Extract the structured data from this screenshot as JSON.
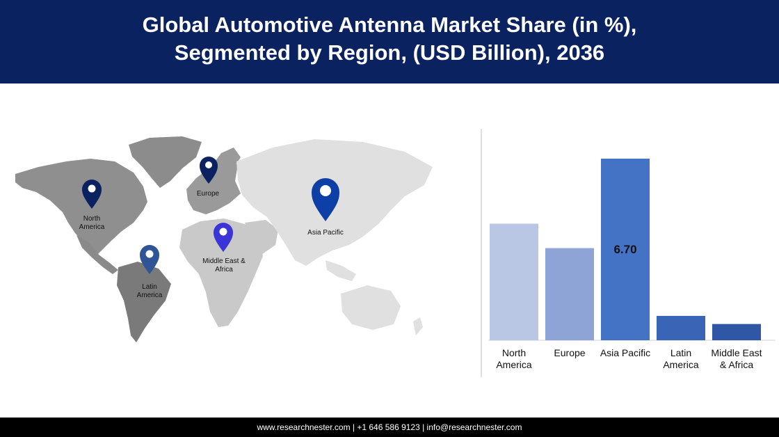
{
  "header": {
    "title_line1": "Global Automotive Antenna Market Share (in %),",
    "title_line2": "Segmented by Region, (USD Billion), 2036"
  },
  "map": {
    "regions": [
      {
        "line1": "North",
        "line2": "America",
        "pin_color": "#0b2261"
      },
      {
        "line1": "Europe",
        "line2": "",
        "pin_color": "#0b2261"
      },
      {
        "line1": "Asia Pacific",
        "line2": "",
        "pin_color": "#0d3fa6"
      },
      {
        "line1": "Middle East &",
        "line2": "Africa",
        "pin_color": "#3b35d8"
      },
      {
        "line1": "Latin",
        "line2": "America",
        "pin_color": "#2f5597"
      }
    ]
  },
  "chart_data": {
    "type": "bar",
    "categories": [
      [
        "North",
        "America"
      ],
      [
        "Europe"
      ],
      [
        "Asia Pacific"
      ],
      [
        "Latin",
        "America"
      ],
      [
        "Middle East",
        "& Africa"
      ]
    ],
    "values": [
      4.3,
      3.4,
      6.7,
      0.9,
      0.6
    ],
    "data_labels": [
      "",
      "",
      "6.70",
      "",
      ""
    ],
    "colors": [
      "#b9c7e5",
      "#8ea4d6",
      "#4472c4",
      "#3a64b5",
      "#2f57a5"
    ],
    "ylim": [
      0,
      8
    ]
  },
  "footer": {
    "text": "www.researchnester.com | +1 646 586 9123 | info@researchnester.com"
  }
}
